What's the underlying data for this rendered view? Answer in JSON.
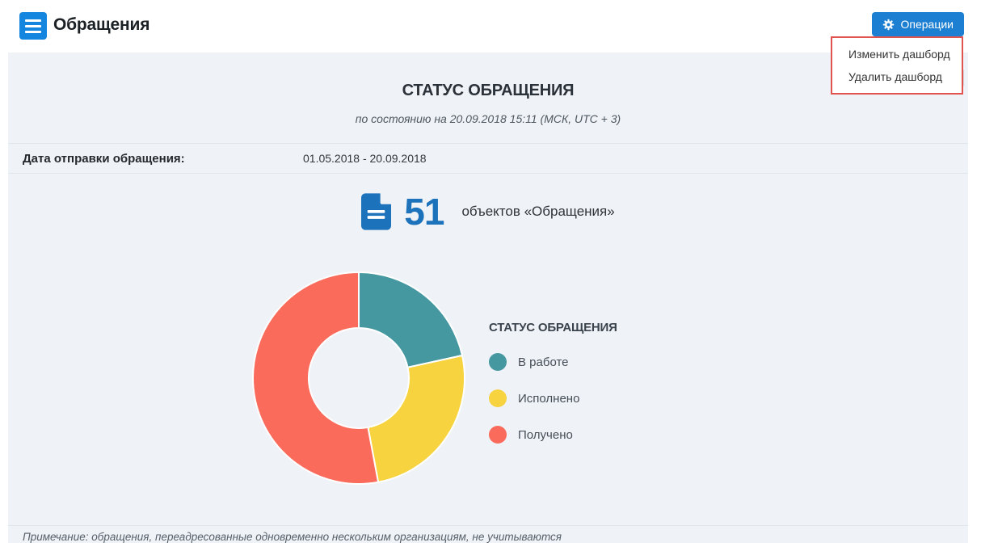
{
  "header": {
    "title": "Обращения",
    "operations_button": "Операции"
  },
  "operations_menu": {
    "items": [
      "Изменить дашборд",
      "Удалить дашборд"
    ],
    "highlight_color": "#e0534e"
  },
  "dashboard": {
    "title": "СТАТУС ОБРАЩЕНИЯ",
    "subtitle": "по состоянию на 20.09.2018 15:11 (МСК, UTC + 3)",
    "filter": {
      "label": "Дата отправки обращения:",
      "value": "01.05.2018 - 20.09.2018"
    },
    "counter": {
      "value": "51",
      "label": "объектов «Обращения»"
    },
    "note": "Примечание: обращения, переадресованные одновременно нескольким организациям, не учитываются"
  },
  "chart_data": {
    "type": "pie",
    "donut": true,
    "title": "СТАТУС ОБРАЩЕНИЯ",
    "legend_position": "right",
    "total": 51,
    "categories": [
      "В работе",
      "Исполнено",
      "Получено"
    ],
    "values": [
      11,
      13,
      27
    ],
    "colors": [
      "#4598a0",
      "#f7d33f",
      "#fa6b5b"
    ],
    "outer_radius": 131,
    "inner_radius": 62,
    "start_angle_deg": 0
  },
  "colors": {
    "accent_blue": "#1c7fd2",
    "burger_blue": "#1486df",
    "counter_blue": "#1d72bc",
    "panel_bg": "#eff2f7",
    "highlight_red": "#e0534e"
  }
}
